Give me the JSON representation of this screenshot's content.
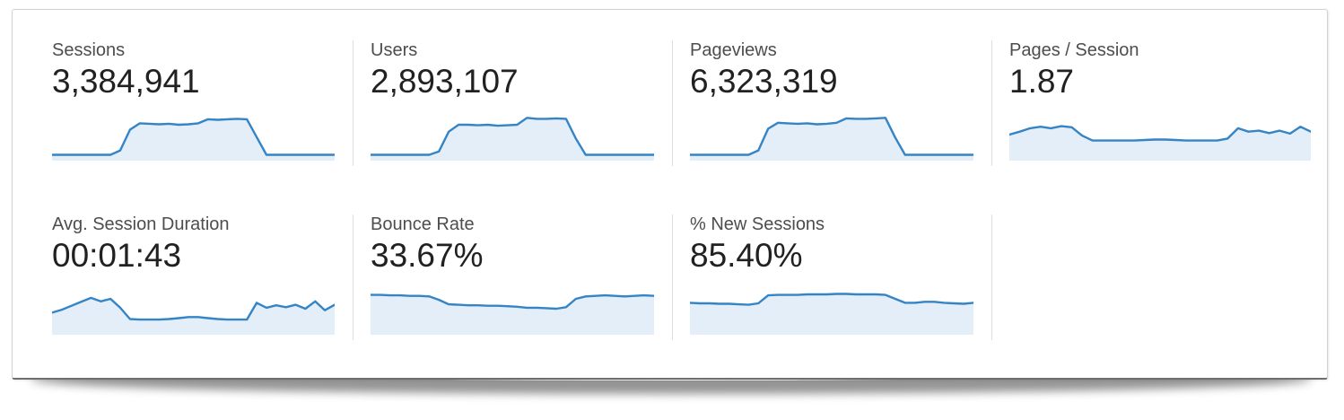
{
  "panel": {
    "background": "#ffffff",
    "border_color": "#d2d2d2",
    "bottom_edge_color": "#6e6e6e",
    "divider_color": "#dcdcdc"
  },
  "text_style": {
    "label_color": "#4d4d4d",
    "value_color": "#212121"
  },
  "chart_style": {
    "line_color": "#3484c6",
    "fill_color": "#e4eef8"
  },
  "chart_data": {
    "type": "area",
    "title": "Analytics audience overview metric scorecards with sparklines",
    "grid": false,
    "legend_position": "none",
    "ylim": [
      0,
      1
    ],
    "x_axis": "time (no tick labels shown in UI)",
    "note": "sparkline values are relative heights (0-1) read from the pixels; no numeric axes are displayed",
    "series": [
      {
        "name": "Sessions",
        "headline": "3,384,941",
        "values": [
          0.09,
          0.09,
          0.09,
          0.09,
          0.09,
          0.09,
          0.09,
          0.18,
          0.6,
          0.73,
          0.72,
          0.71,
          0.72,
          0.7,
          0.71,
          0.73,
          0.81,
          0.8,
          0.81,
          0.82,
          0.81,
          0.45,
          0.09,
          0.09,
          0.09,
          0.09,
          0.09,
          0.09,
          0.09,
          0.09
        ]
      },
      {
        "name": "Users",
        "headline": "2,893,107",
        "values": [
          0.09,
          0.09,
          0.09,
          0.09,
          0.09,
          0.09,
          0.09,
          0.16,
          0.56,
          0.7,
          0.7,
          0.69,
          0.7,
          0.68,
          0.69,
          0.7,
          0.84,
          0.82,
          0.82,
          0.83,
          0.82,
          0.42,
          0.09,
          0.09,
          0.09,
          0.09,
          0.09,
          0.09,
          0.09,
          0.09
        ]
      },
      {
        "name": "Pageviews",
        "headline": "6,323,319",
        "values": [
          0.09,
          0.09,
          0.09,
          0.09,
          0.09,
          0.09,
          0.09,
          0.18,
          0.62,
          0.74,
          0.73,
          0.72,
          0.73,
          0.71,
          0.72,
          0.74,
          0.83,
          0.82,
          0.82,
          0.83,
          0.84,
          0.44,
          0.09,
          0.09,
          0.09,
          0.09,
          0.09,
          0.09,
          0.09,
          0.09
        ]
      },
      {
        "name": "Pages / Session",
        "headline": "1.87",
        "values": [
          0.5,
          0.56,
          0.63,
          0.66,
          0.63,
          0.67,
          0.65,
          0.48,
          0.38,
          0.38,
          0.38,
          0.38,
          0.38,
          0.39,
          0.4,
          0.4,
          0.39,
          0.38,
          0.38,
          0.38,
          0.38,
          0.42,
          0.63,
          0.56,
          0.58,
          0.53,
          0.58,
          0.52,
          0.66,
          0.56
        ]
      },
      {
        "name": "Avg. Session Duration",
        "headline": "00:01:43",
        "values": [
          0.42,
          0.48,
          0.56,
          0.64,
          0.72,
          0.65,
          0.7,
          0.52,
          0.29,
          0.28,
          0.28,
          0.28,
          0.29,
          0.31,
          0.33,
          0.33,
          0.31,
          0.29,
          0.28,
          0.28,
          0.28,
          0.62,
          0.52,
          0.57,
          0.53,
          0.58,
          0.5,
          0.65,
          0.47,
          0.58
        ]
      },
      {
        "name": "Bounce Rate",
        "headline": "33.67%",
        "values": [
          0.78,
          0.78,
          0.77,
          0.77,
          0.76,
          0.76,
          0.75,
          0.68,
          0.59,
          0.58,
          0.57,
          0.57,
          0.56,
          0.56,
          0.55,
          0.54,
          0.52,
          0.52,
          0.51,
          0.5,
          0.53,
          0.7,
          0.75,
          0.76,
          0.77,
          0.76,
          0.75,
          0.76,
          0.77,
          0.76
        ]
      },
      {
        "name": "% New Sessions",
        "headline": "85.40%",
        "values": [
          0.62,
          0.61,
          0.61,
          0.6,
          0.6,
          0.59,
          0.58,
          0.61,
          0.77,
          0.78,
          0.78,
          0.78,
          0.79,
          0.79,
          0.79,
          0.8,
          0.8,
          0.79,
          0.79,
          0.79,
          0.78,
          0.7,
          0.62,
          0.62,
          0.64,
          0.64,
          0.62,
          0.61,
          0.6,
          0.62
        ]
      }
    ]
  }
}
